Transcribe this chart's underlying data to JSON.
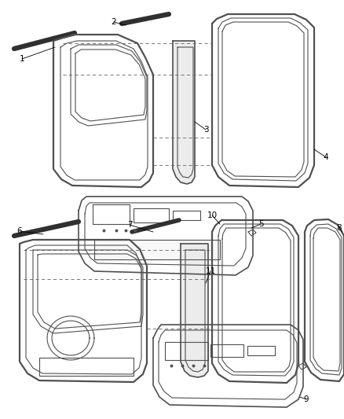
{
  "background_color": "#ffffff",
  "line_color": "#505050",
  "label_color": "#000000",
  "fig_width": 4.38,
  "fig_height": 5.33,
  "dpi": 100,
  "strip_color": "#303030",
  "dash_color": "#606060"
}
